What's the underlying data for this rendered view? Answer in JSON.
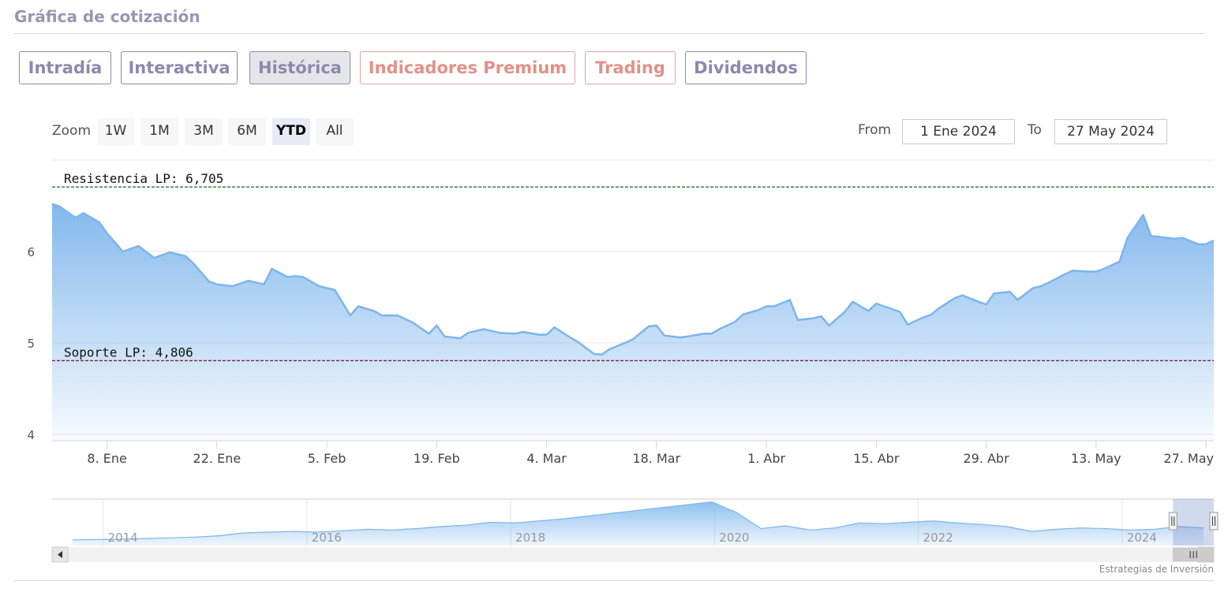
{
  "page_title": "Gráfica de cotización",
  "tabs": [
    {
      "label": "Intradía",
      "variant": "purple",
      "active": false
    },
    {
      "label": "Interactiva",
      "variant": "purple",
      "active": false
    },
    {
      "label": "Histórica",
      "variant": "purple",
      "active": true
    },
    {
      "label": "Indicadores Premium",
      "variant": "salmon",
      "active": false
    },
    {
      "label": "Trading",
      "variant": "salmon",
      "active": false
    },
    {
      "label": "Dividendos",
      "variant": "purple",
      "active": false
    }
  ],
  "zoom": {
    "label": "Zoom",
    "buttons": [
      "1W",
      "1M",
      "3M",
      "6M",
      "YTD",
      "All"
    ],
    "active": "YTD"
  },
  "range": {
    "from_label": "From",
    "from_value": "1 Ene 2024",
    "to_label": "To",
    "to_value": "27 May 2024"
  },
  "credit": "Estrategias de Inversión",
  "chart_data": {
    "type": "area",
    "x_start": "2024-01-01",
    "x_end": "2024-05-28",
    "xlim": [
      0,
      148
    ],
    "ylim": [
      3.93,
      7.0
    ],
    "y_ticks": [
      4,
      5,
      6
    ],
    "y_tick_labels": [
      "4",
      "5",
      "6"
    ],
    "x_tick_labels": [
      "8. Ene",
      "22. Ene",
      "5. Feb",
      "19. Feb",
      "4. Mar",
      "18. Mar",
      "1. Abr",
      "15. Abr",
      "29. Abr",
      "13. May",
      "27. May"
    ],
    "x_tick_days": [
      7,
      21,
      35,
      49,
      63,
      77,
      91,
      105,
      119,
      133,
      147
    ],
    "grid": true,
    "series": [
      {
        "x": [
          0,
          1,
          3,
          4,
          6,
          7,
          9,
          11,
          13,
          15,
          17,
          18,
          20,
          21,
          23,
          25,
          27,
          28,
          30,
          31,
          32,
          34,
          36,
          38,
          39,
          41,
          42,
          44,
          46,
          48,
          49,
          50,
          52,
          53,
          55,
          56,
          57,
          59,
          60,
          62,
          63,
          64,
          66,
          67,
          69,
          70,
          71,
          73,
          74,
          76,
          77,
          78,
          80,
          81,
          83,
          84,
          85,
          87,
          88,
          90,
          91,
          92,
          94,
          95,
          97,
          98,
          99,
          101,
          102,
          104,
          105,
          106,
          108,
          109,
          111,
          112,
          113,
          115,
          116,
          118,
          119,
          120,
          122,
          123,
          125,
          126,
          127,
          129,
          130,
          132,
          133,
          134,
          136,
          137,
          139,
          140,
          141,
          143,
          144,
          146,
          147,
          148
        ],
        "values": [
          6.52,
          6.49,
          6.37,
          6.42,
          6.32,
          6.2,
          6.0,
          6.06,
          5.93,
          5.99,
          5.95,
          5.87,
          5.67,
          5.64,
          5.62,
          5.68,
          5.64,
          5.81,
          5.72,
          5.73,
          5.72,
          5.62,
          5.58,
          5.3,
          5.4,
          5.35,
          5.3,
          5.3,
          5.22,
          5.1,
          5.19,
          5.07,
          5.05,
          5.11,
          5.15,
          5.13,
          5.11,
          5.1,
          5.12,
          5.09,
          5.09,
          5.17,
          5.06,
          5.01,
          4.88,
          4.87,
          4.93,
          5.0,
          5.04,
          5.18,
          5.19,
          5.08,
          5.06,
          5.07,
          5.1,
          5.1,
          5.15,
          5.23,
          5.31,
          5.36,
          5.4,
          5.4,
          5.47,
          5.25,
          5.27,
          5.29,
          5.19,
          5.34,
          5.45,
          5.35,
          5.43,
          5.4,
          5.34,
          5.2,
          5.28,
          5.31,
          5.38,
          5.49,
          5.52,
          5.45,
          5.42,
          5.54,
          5.56,
          5.47,
          5.6,
          5.62,
          5.66,
          5.75,
          5.79,
          5.78,
          5.78,
          5.81,
          5.89,
          6.15,
          6.4,
          6.17,
          6.16,
          6.14,
          6.15,
          6.08,
          6.08,
          6.12
        ]
      }
    ],
    "plot_lines": [
      {
        "label": "Resistencia LP: 6,705",
        "value": 6.705,
        "color": "#1e7a2c"
      },
      {
        "label": "Soporte LP: 4,806",
        "value": 4.806,
        "color": "#8a1c2e"
      }
    ],
    "line_color": "#7cb5ec",
    "navigator": {
      "x_start_year": 2013,
      "x_end_year": 2024.4,
      "tick_labels": [
        "2014",
        "2016",
        "2018",
        "2020",
        "2022",
        "2024"
      ],
      "tick_years": [
        2014,
        2016,
        2018,
        2020,
        2022,
        2024
      ],
      "window_start_year": 2024.0,
      "window_end_year": 2024.4,
      "values": [
        4.4,
        4.45,
        4.5,
        4.6,
        4.7,
        4.8,
        5.0,
        5.4,
        5.5,
        5.6,
        5.5,
        5.7,
        5.9,
        5.8,
        6.0,
        6.3,
        6.5,
        6.9,
        6.8,
        7.1,
        7.4,
        7.8,
        8.2,
        8.6,
        9.0,
        9.4,
        9.8,
        8.3,
        6.0,
        6.4,
        5.8,
        6.1,
        6.8,
        6.7,
        6.9,
        7.1,
        6.8,
        6.6,
        6.3,
        5.6,
        5.9,
        6.1,
        6.0,
        5.8,
        5.9,
        6.3,
        6.1
      ]
    }
  }
}
